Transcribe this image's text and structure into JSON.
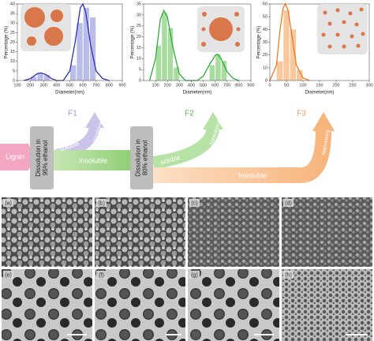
{
  "chart_data": [
    {
      "type": "histogram",
      "xlabel": "Diameter(nm)",
      "ylabel": "Percentage (%)",
      "color": "#2b2fb8",
      "bar_color": "#b9bde8",
      "xlim": [
        100,
        900
      ],
      "xticks": [
        100,
        200,
        300,
        400,
        500,
        600,
        700,
        800,
        900
      ],
      "ylim": [
        0,
        40
      ],
      "yticks": [
        0,
        5,
        10,
        15,
        20,
        25,
        30,
        35,
        40
      ],
      "bins": [
        200,
        250,
        300,
        350,
        400,
        450,
        500,
        550,
        600,
        650,
        700
      ],
      "values": [
        2,
        4,
        3,
        0,
        0,
        0,
        8,
        30,
        38,
        33,
        10
      ],
      "fit": {
        "x": [
          150,
          200,
          250,
          280,
          320,
          360,
          400,
          450,
          500,
          540,
          580,
          600,
          620,
          660,
          700,
          750,
          800
        ],
        "y": [
          0,
          1,
          3.5,
          4,
          3,
          1,
          0,
          0,
          5,
          20,
          38,
          40,
          36,
          18,
          5,
          1,
          0
        ]
      }
    },
    {
      "type": "histogram",
      "xlabel": "Diameter(nm)",
      "ylabel": "Percentage (%)",
      "color": "#2eaa3a",
      "bar_color": "#a9dca0",
      "xlim": [
        0,
        900
      ],
      "xticks": [
        100,
        200,
        300,
        400,
        500,
        600,
        700,
        800,
        900
      ],
      "ylim": [
        0,
        35
      ],
      "yticks": [
        0,
        5,
        10,
        15,
        20,
        25,
        30,
        35
      ],
      "bins": [
        100,
        150,
        200,
        250,
        300,
        350,
        400,
        450,
        500,
        550,
        600,
        650,
        700
      ],
      "values": [
        16,
        31,
        24,
        6,
        0,
        0,
        0,
        0,
        0,
        7,
        12,
        9,
        0
      ],
      "fit": {
        "x": [
          50,
          100,
          140,
          170,
          200,
          250,
          300,
          350,
          400,
          450,
          500,
          550,
          600,
          620,
          650,
          700,
          750,
          800
        ],
        "y": [
          0,
          10,
          28,
          32,
          29,
          14,
          3,
          0,
          0,
          0,
          2,
          7,
          11.5,
          12,
          10,
          4,
          1,
          0
        ]
      }
    },
    {
      "type": "histogram",
      "xlabel": "Diameter(nm)",
      "ylabel": "Percentage (%)",
      "color": "#f07a20",
      "bar_color": "#f8c79b",
      "xlim": [
        0,
        300
      ],
      "xticks": [
        0,
        50,
        100,
        150,
        200,
        250,
        300
      ],
      "ylim": [
        0,
        60
      ],
      "yticks": [
        0,
        10,
        20,
        30,
        40,
        50,
        60
      ],
      "bins": [
        20,
        40,
        60,
        80,
        100
      ],
      "values": [
        15,
        55,
        40,
        8
      ],
      "fit": {
        "x": [
          0,
          20,
          30,
          40,
          47,
          55,
          65,
          80,
          100,
          120
        ],
        "y": [
          0,
          12,
          38,
          57,
          60,
          55,
          38,
          12,
          2,
          0
        ]
      }
    }
  ],
  "diagram": {
    "source": "Lignin",
    "step1": [
      "Dissolution in",
      "95% ethanol"
    ],
    "step2": [
      "Dissolution in",
      "80% ethanol"
    ],
    "soluble": [
      "soluble",
      "soluble"
    ],
    "insoluble": [
      "Insoluble",
      "Insoluble"
    ],
    "nanosizing": [
      "Nanosizing",
      "Nanosizing",
      "Nanosizing"
    ],
    "fractions": [
      "F1",
      "F2",
      "F3"
    ]
  },
  "panels": [
    "(a)",
    "(b)",
    "(c)",
    "(d)",
    "(e)",
    "(f)",
    "(g)",
    "(h)"
  ]
}
